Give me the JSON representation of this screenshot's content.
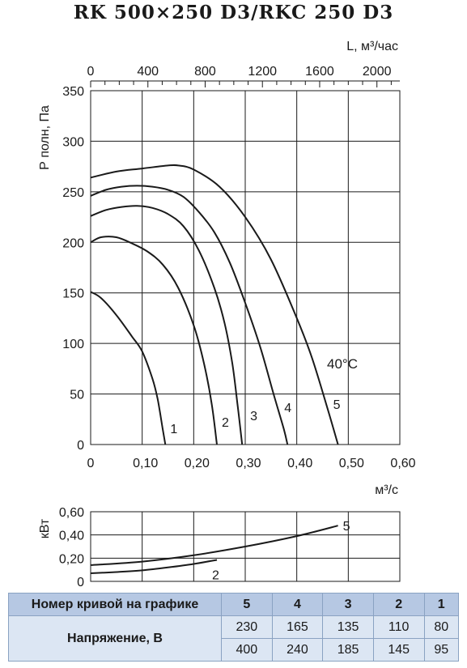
{
  "title": "RK 500×250 D3/RKC 250 D3",
  "chart_data": [
    {
      "type": "line",
      "xlabel": "м³/с",
      "ylabel": "Р полн, Па",
      "x2label": "L, м³/час",
      "xlim": [
        0,
        0.6
      ],
      "ylim": [
        0,
        350
      ],
      "x2lim": [
        0,
        2160
      ],
      "xticks": [
        0,
        0.1,
        0.2,
        0.3,
        0.4,
        0.5,
        0.6
      ],
      "xtick_labels": [
        "0",
        "0,10",
        "0,20",
        "0,30",
        "0,40",
        "0,50",
        "0,60"
      ],
      "yticks": [
        0,
        50,
        100,
        150,
        200,
        250,
        300,
        350
      ],
      "ytick_labels": [
        "0",
        "50",
        "100",
        "150",
        "200",
        "250",
        "300",
        "350"
      ],
      "x2ticks": [
        0,
        400,
        800,
        1200,
        1600,
        2000
      ],
      "x2tick_labels": [
        "0",
        "400",
        "800",
        "1200",
        "1600",
        "2000"
      ],
      "grid": true,
      "annotation": "40°C",
      "series": [
        {
          "name": "1",
          "x": [
            0,
            0.02,
            0.05,
            0.08,
            0.1,
            0.12,
            0.13,
            0.14,
            0.145
          ],
          "y": [
            151,
            145,
            128,
            107,
            92,
            65,
            45,
            15,
            0
          ]
        },
        {
          "name": "2",
          "x": [
            0,
            0.02,
            0.05,
            0.08,
            0.11,
            0.14,
            0.17,
            0.2,
            0.22,
            0.235,
            0.245
          ],
          "y": [
            200,
            205,
            205,
            199,
            191,
            178,
            155,
            118,
            80,
            40,
            0
          ]
        },
        {
          "name": "3",
          "x": [
            0,
            0.03,
            0.06,
            0.09,
            0.12,
            0.15,
            0.18,
            0.21,
            0.24,
            0.26,
            0.275,
            0.285,
            0.294
          ],
          "y": [
            226,
            232,
            235,
            236,
            234,
            228,
            216,
            192,
            155,
            120,
            80,
            40,
            0
          ]
        },
        {
          "name": "4",
          "x": [
            0,
            0.03,
            0.06,
            0.09,
            0.12,
            0.15,
            0.18,
            0.21,
            0.24,
            0.27,
            0.3,
            0.33,
            0.355,
            0.375,
            0.382
          ],
          "y": [
            246,
            252,
            255,
            256,
            255,
            252,
            245,
            230,
            210,
            180,
            140,
            95,
            50,
            15,
            0
          ]
        },
        {
          "name": "5",
          "x": [
            0,
            0.05,
            0.1,
            0.15,
            0.17,
            0.2,
            0.25,
            0.3,
            0.35,
            0.4,
            0.43,
            0.46,
            0.48
          ],
          "y": [
            264,
            270,
            273,
            276,
            276,
            272,
            255,
            225,
            183,
            125,
            85,
            35,
            0
          ]
        }
      ]
    },
    {
      "type": "line",
      "ylabel": "кВт",
      "xlim": [
        0,
        0.6
      ],
      "ylim": [
        0,
        0.6
      ],
      "yticks": [
        0,
        0.2,
        0.4,
        0.6
      ],
      "ytick_labels": [
        "0",
        "0,20",
        "0,40",
        "0,60"
      ],
      "grid": true,
      "series": [
        {
          "name": "5",
          "x": [
            0,
            0.1,
            0.2,
            0.3,
            0.4,
            0.48
          ],
          "y": [
            0.14,
            0.17,
            0.225,
            0.3,
            0.39,
            0.48
          ]
        },
        {
          "name": "2",
          "x": [
            0,
            0.05,
            0.1,
            0.15,
            0.2,
            0.245
          ],
          "y": [
            0.07,
            0.08,
            0.095,
            0.12,
            0.15,
            0.185
          ]
        }
      ]
    }
  ],
  "table": {
    "header_label": "Номер кривой на графике",
    "columns": [
      "5",
      "4",
      "3",
      "2",
      "1"
    ],
    "row_label": "Напряжение, В",
    "rows": [
      [
        "230",
        "165",
        "135",
        "110",
        "80"
      ],
      [
        "400",
        "240",
        "185",
        "145",
        "95"
      ]
    ]
  }
}
